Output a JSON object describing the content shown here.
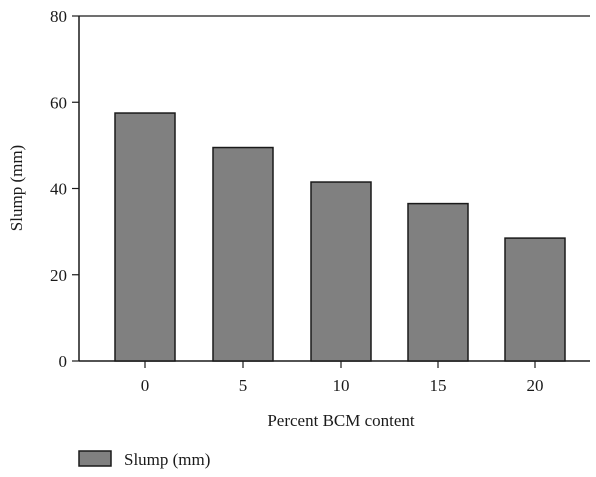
{
  "chart_data": {
    "type": "bar",
    "categories": [
      "0",
      "5",
      "10",
      "15",
      "20"
    ],
    "series": [
      {
        "name": "Slump (mm)",
        "values": [
          57.5,
          49.5,
          41.5,
          36.5,
          28.5
        ]
      }
    ],
    "xlabel": "Percent BCM content",
    "ylabel": "Slump (mm)",
    "ylim": [
      0,
      80
    ],
    "yticks": [
      0,
      20,
      40,
      60,
      80
    ],
    "grid": false,
    "legend": "bottom-left",
    "colors": {
      "bar_fill": "#808080",
      "bar_stroke": "#1a1a1a",
      "axis": "#1a1a1a"
    }
  }
}
